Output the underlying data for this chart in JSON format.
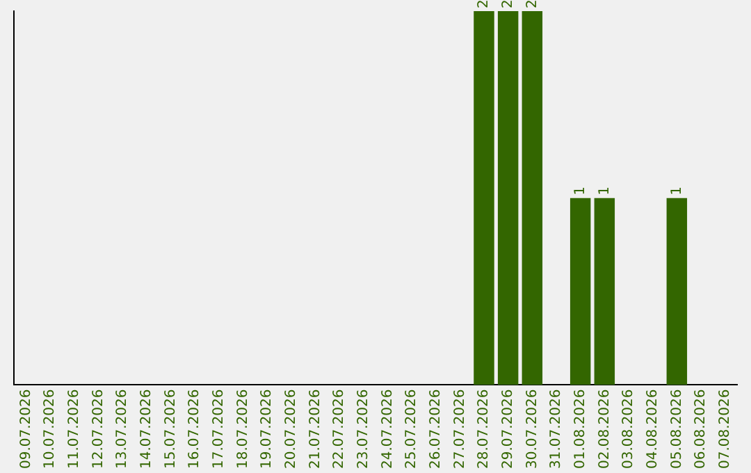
{
  "chart_data": {
    "type": "bar",
    "categories": [
      "09.07.2026",
      "10.07.2026",
      "11.07.2026",
      "12.07.2026",
      "13.07.2026",
      "14.07.2026",
      "15.07.2026",
      "16.07.2026",
      "17.07.2026",
      "18.07.2026",
      "19.07.2026",
      "20.07.2026",
      "21.07.2026",
      "22.07.2026",
      "23.07.2026",
      "24.07.2026",
      "25.07.2026",
      "26.07.2026",
      "27.07.2026",
      "28.07.2026",
      "29.07.2026",
      "30.07.2026",
      "31.07.2026",
      "01.08.2026",
      "02.08.2026",
      "03.08.2026",
      "04.08.2026",
      "05.08.2026",
      "06.08.2026",
      "07.08.2026"
    ],
    "values": [
      null,
      null,
      null,
      null,
      null,
      null,
      null,
      null,
      null,
      null,
      null,
      null,
      null,
      null,
      null,
      null,
      null,
      null,
      null,
      2,
      2,
      2,
      null,
      1,
      1,
      null,
      null,
      1,
      null,
      null
    ],
    "color": "#336600",
    "data_labels": true,
    "grid": false,
    "legend": false,
    "tick_labels": "x"
  }
}
